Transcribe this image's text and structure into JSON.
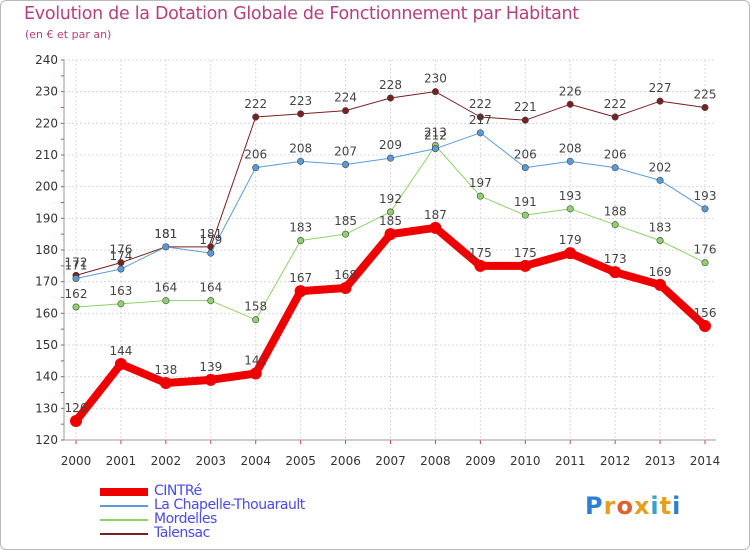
{
  "title": "Evolution de la Dotation Globale de Fonctionnement par Habitant",
  "subtitle": "(en € et par an)",
  "logo": "Proxiti",
  "chart_data": {
    "type": "line",
    "title": "Evolution de la Dotation Globale de Fonctionnement par Habitant",
    "ylabel": "(en € et par an)",
    "xlabel": "",
    "x": [
      "2000",
      "2001",
      "2002",
      "2003",
      "2004",
      "2005",
      "2006",
      "2007",
      "2008",
      "2009",
      "2010",
      "2011",
      "2012",
      "2013",
      "2014"
    ],
    "ylim": [
      120,
      240
    ],
    "yticks": [
      120,
      130,
      140,
      150,
      160,
      170,
      180,
      190,
      200,
      210,
      220,
      230,
      240
    ],
    "grid": true,
    "legend_position": "bottom-left",
    "series": [
      {
        "name": "CINTRé",
        "color": "#ee0000",
        "width": 8,
        "values": [
          126,
          144,
          138,
          139,
          141,
          167,
          168,
          185,
          187,
          175,
          175,
          179,
          173,
          169,
          156
        ]
      },
      {
        "name": "La Chapelle-Thouarault",
        "color": "#5b9bd5",
        "width": 1,
        "values": [
          171,
          174,
          181,
          179,
          206,
          208,
          207,
          209,
          212,
          217,
          206,
          208,
          206,
          202,
          193
        ]
      },
      {
        "name": "Mordelles",
        "color": "#8fd16a",
        "width": 1,
        "values": [
          162,
          163,
          164,
          164,
          158,
          183,
          185,
          192,
          213,
          197,
          191,
          193,
          188,
          183,
          176
        ]
      },
      {
        "name": "Talensac",
        "color": "#7a2020",
        "width": 1,
        "values": [
          172,
          176,
          181,
          181,
          222,
          223,
          224,
          228,
          230,
          222,
          221,
          226,
          222,
          227,
          225
        ]
      }
    ]
  }
}
